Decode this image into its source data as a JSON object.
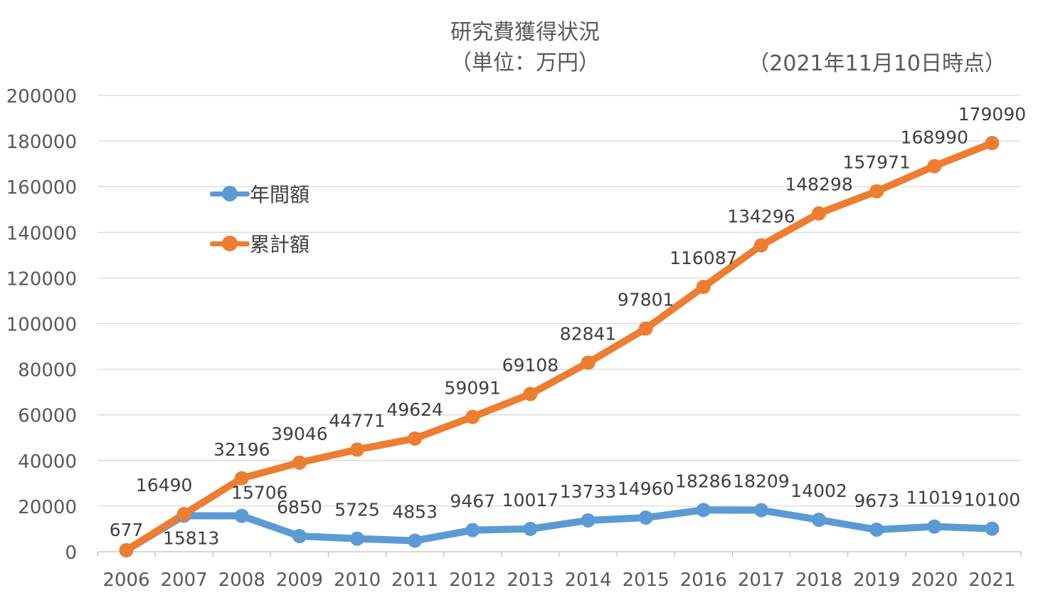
{
  "chart_data": {
    "type": "line",
    "title": "研究費獲得状況",
    "subtitle": "（単位：万円）",
    "note": "（2021年11月10日時点）",
    "x": [
      "2006",
      "2007",
      "2008",
      "2009",
      "2010",
      "2011",
      "2012",
      "2013",
      "2014",
      "2015",
      "2016",
      "2017",
      "2018",
      "2019",
      "2020",
      "2021"
    ],
    "ylim": [
      0,
      200000
    ],
    "yticks": [
      "0",
      "20000",
      "40000",
      "60000",
      "80000",
      "100000",
      "120000",
      "140000",
      "160000",
      "180000",
      "200000"
    ],
    "grid": true,
    "legend_position": "upper-left inside",
    "series": [
      {
        "name": "年間額",
        "color": "#5B9BD5",
        "values": [
          677,
          15813,
          15706,
          6850,
          5725,
          4853,
          9467,
          10017,
          13733,
          14960,
          18286,
          18209,
          14002,
          9673,
          11019,
          10100
        ],
        "labels": [
          "677",
          "15813",
          "15706",
          "6850",
          "5725",
          "4853",
          "9467",
          "10017",
          "13733",
          "14960",
          "18286",
          "18209",
          "14002",
          "9673",
          "11019",
          "10100"
        ]
      },
      {
        "name": "累計額",
        "color": "#ED7D31",
        "values": [
          677,
          16490,
          32196,
          39046,
          44771,
          49624,
          59091,
          69108,
          82841,
          97801,
          116087,
          134296,
          148298,
          157971,
          168990,
          179090
        ],
        "labels": [
          "677",
          "16490",
          "32196",
          "39046",
          "44771",
          "49624",
          "59091",
          "69108",
          "82841",
          "97801",
          "116087",
          "134296",
          "148298",
          "157971",
          "168990",
          "179090"
        ]
      }
    ]
  }
}
